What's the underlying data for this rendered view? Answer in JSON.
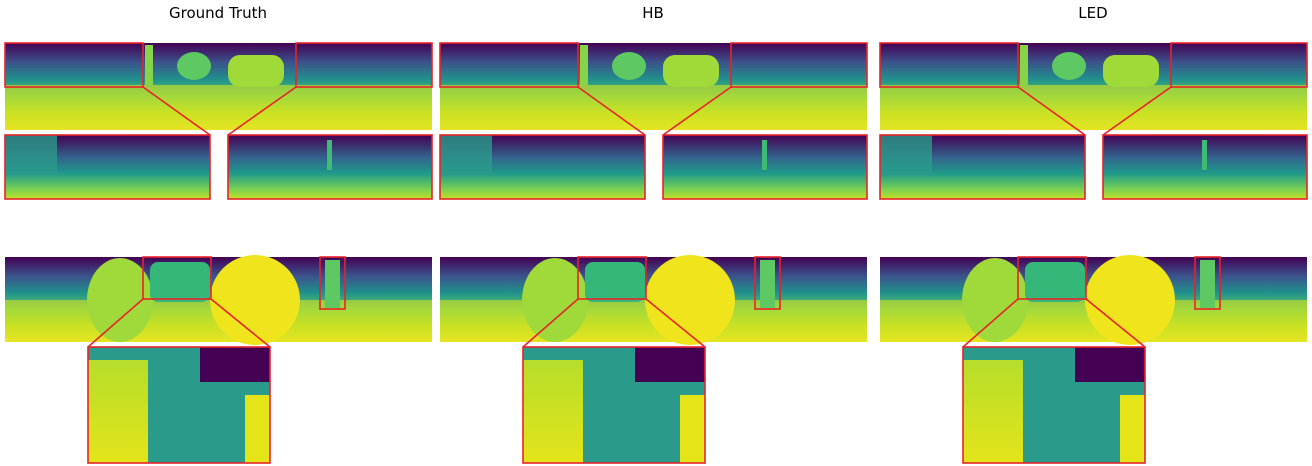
{
  "columns": [
    {
      "title": "Ground Truth"
    },
    {
      "title": "HB"
    },
    {
      "title": "LED"
    }
  ]
}
